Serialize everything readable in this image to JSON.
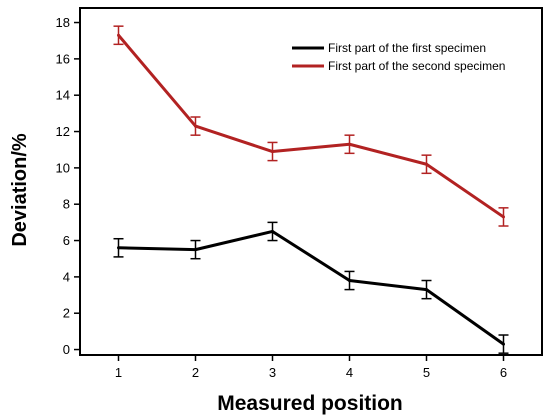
{
  "chart_data": {
    "type": "line",
    "title": "",
    "xlabel": "Measured position",
    "ylabel": "Deviation/%",
    "x": [
      1,
      2,
      3,
      4,
      5,
      6
    ],
    "xlim": [
      0.5,
      6.5
    ],
    "ylim": [
      -0.3,
      18.8
    ],
    "x_ticks": [
      "1",
      "2",
      "3",
      "4",
      "5",
      "6"
    ],
    "y_ticks": [
      0,
      2,
      4,
      6,
      8,
      10,
      12,
      14,
      16,
      18
    ],
    "grid": false,
    "legend_position": "top-right",
    "series": [
      {
        "name": "First part of the first specimen",
        "color": "#000000",
        "values": [
          5.6,
          5.5,
          6.5,
          3.8,
          3.3,
          0.3
        ],
        "errors": [
          0.5,
          0.5,
          0.5,
          0.5,
          0.5,
          0.5
        ]
      },
      {
        "name": "First part of the second specimen",
        "color": "#b22222",
        "values": [
          17.3,
          12.3,
          10.9,
          11.3,
          10.2,
          7.3
        ],
        "errors": [
          0.5,
          0.5,
          0.5,
          0.5,
          0.5,
          0.5
        ]
      }
    ]
  }
}
